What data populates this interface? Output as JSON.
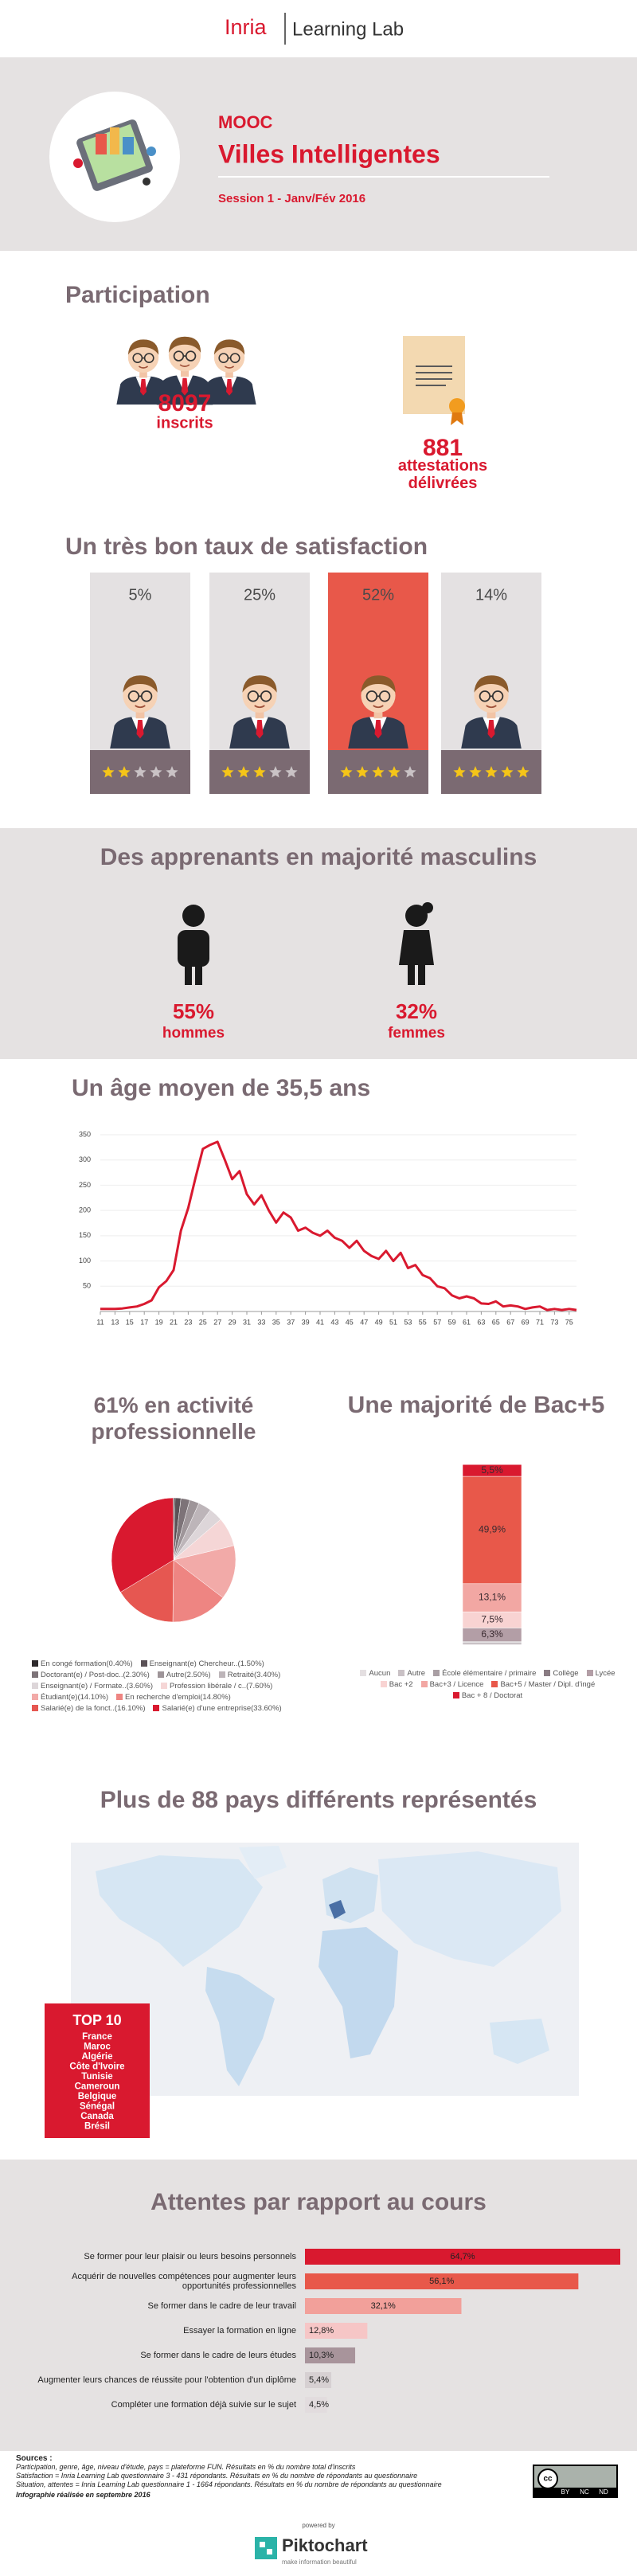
{
  "header": {
    "brand": "Inria",
    "product": "Learning Lab"
  },
  "banner": {
    "kicker": "MOOC",
    "title": "Villes Intelligentes",
    "session": "Session 1 - Janv/Fév 2016"
  },
  "participation": {
    "title": "Participation",
    "enrolled": 8097,
    "enrolled_label": "inscrits",
    "certificates": 881,
    "certificates_label": "attestations délivrées"
  },
  "satisfaction": {
    "title": "Un très bon taux de satisfaction",
    "values": [
      5,
      25,
      52,
      14
    ],
    "value_labels": [
      "5%",
      "25%",
      "52%",
      "14%"
    ],
    "stars": [
      2,
      3,
      4,
      5
    ]
  },
  "gender": {
    "title": "Des apprenants en majorité masculins",
    "values": [
      55,
      32
    ],
    "value_labels": [
      "55%",
      "32%"
    ],
    "labels": [
      "hommes",
      "femmes"
    ]
  },
  "chart_data": [
    {
      "type": "line",
      "title": "Un âge moyen de 35,5 ans",
      "color": "#d9192f",
      "grid": true,
      "x": [
        11,
        12,
        13,
        14,
        15,
        16,
        17,
        18,
        19,
        20,
        21,
        22,
        23,
        24,
        25,
        26,
        27,
        28,
        29,
        30,
        31,
        32,
        33,
        34,
        35,
        36,
        37,
        38,
        39,
        40,
        41,
        42,
        43,
        44,
        45,
        46,
        47,
        48,
        49,
        50,
        51,
        52,
        53,
        54,
        55,
        56,
        57,
        58,
        59,
        60,
        61,
        62,
        63,
        64,
        65,
        66,
        67,
        68,
        69,
        70,
        71,
        72,
        73,
        74,
        75,
        76
      ],
      "values": [
        5,
        5,
        5,
        6,
        8,
        10,
        15,
        22,
        48,
        60,
        82,
        160,
        205,
        265,
        322,
        330,
        336,
        300,
        262,
        278,
        232,
        212,
        230,
        200,
        176,
        196,
        186,
        160,
        166,
        156,
        150,
        160,
        146,
        140,
        126,
        140,
        120,
        110,
        104,
        120,
        100,
        116,
        86,
        92,
        72,
        66,
        50,
        46,
        32,
        26,
        30,
        26,
        16,
        15,
        20,
        10,
        12,
        10,
        5,
        8,
        10,
        3,
        5,
        3,
        5,
        3
      ],
      "xlim": [
        11,
        76
      ],
      "ylim": [
        0,
        350
      ],
      "xticks": [
        11,
        13,
        15,
        17,
        19,
        21,
        23,
        25,
        27,
        29,
        31,
        33,
        35,
        37,
        39,
        41,
        43,
        45,
        47,
        49,
        51,
        53,
        55,
        57,
        59,
        61,
        63,
        65,
        67,
        69,
        71,
        73,
        75
      ],
      "yticks": [
        50,
        100,
        150,
        200,
        250,
        300,
        350
      ]
    },
    {
      "type": "pie",
      "title": "61% en activité professionnelle",
      "categories": [
        "En congé formation(0.40%)",
        "Enseignant(e) Chercheur..(1.50%)",
        "Doctorant(e) / Post-doc..(2.30%)",
        "Autre(2.50%)",
        "Retraité(3.40%)",
        "Enseignant(e) / Formate..(3.60%)",
        "Profession libérale / c..(7.60%)",
        "Étudiant(e)(14.10%)",
        "En recherche d'emploi(14.80%)",
        "Salarié(e) de la fonct..(16.10%)",
        "Salarié(e) d'une entreprise(33.60%)"
      ],
      "values": [
        0.4,
        1.5,
        2.3,
        2.5,
        3.4,
        3.6,
        7.6,
        14.1,
        14.8,
        16.1,
        33.6
      ],
      "colors": [
        "#2e2a2c",
        "#5a5156",
        "#7d7378",
        "#9e9599",
        "#bdb5b9",
        "#ddd6d9",
        "#f5d6d6",
        "#f2aaa8",
        "#ee8582",
        "#e65751",
        "#d9192f"
      ]
    },
    {
      "type": "stacked_bar",
      "title": "Une majorité de Bac+5",
      "categories": [
        "Aucun",
        "Autre",
        "École élémentaire / primaire",
        "Collège",
        "Lycée",
        "Bac +2",
        "Bac+3 / Licence",
        "Bac+5 / Master / Dipl. d'ingé",
        "Bac + 8 / Doctorat"
      ],
      "values": [
        0.2,
        1.0,
        0.1,
        0.4,
        6.3,
        7.5,
        13.1,
        49.9,
        5.5
      ],
      "value_labels": [
        null,
        null,
        null,
        null,
        "6,3%",
        "7,5%",
        "13,1%",
        "49,9%",
        "5,5%"
      ],
      "colors": [
        "#e4dfe1",
        "#c9c1c5",
        "#a99fa4",
        "#8a7c83",
        "#b39ea6",
        "#f8d3d2",
        "#f2a7a3",
        "#e8584a",
        "#d9192f"
      ]
    },
    {
      "type": "hbar",
      "title": "Attentes par rapport au cours",
      "categories": [
        "Se former pour leur plaisir ou leurs besoins personnels",
        "Acquérir de nouvelles compétences pour augmenter leurs opportunités professionnelles",
        "Se former dans le cadre de leur travail",
        "Essayer la formation en ligne",
        "Se former dans le cadre de leurs études",
        "Augmenter leurs chances de réussite pour l'obtention d'un diplôme",
        "Compléter une formation déjà suivie sur le sujet"
      ],
      "values": [
        64.7,
        56.1,
        32.1,
        12.8,
        10.3,
        5.4,
        4.5
      ],
      "value_labels": [
        "64,7%",
        "56,1%",
        "32,1%",
        "12,8%",
        "10,3%",
        "5,4%",
        "4,5%"
      ],
      "colors": [
        "#d9192f",
        "#e8584a",
        "#f2a09a",
        "#f6c6c6",
        "#a8949b",
        "#d6d0d2",
        "#e2dcde"
      ]
    }
  ],
  "countries": {
    "title": "Plus de 88 pays différents représentés",
    "top_title": "TOP 10",
    "top": [
      "France",
      "Maroc",
      "Algérie",
      "Côte d'Ivoire",
      "Tunisie",
      "Cameroun",
      "Belgique",
      "Sénégal",
      "Canada",
      "Brésil"
    ]
  },
  "footer": {
    "sources_title": "Sources :",
    "sources": [
      "Participation, genre, âge, niveau d'étude, pays = plateforme FUN. Résultats en % du nombre total d'inscrits",
      "Satisfaction = Inria Learning Lab questionnaire 3 - 431 répondants. Résultats en % du nombre de répondants au questionnaire",
      "Situation, attentes = Inria Learning Lab questionnaire 1 - 1664 répondants. Résultats en % du nombre de répondants au questionnaire"
    ],
    "made": "Infographie réalisée en septembre 2016",
    "license": [
      "cc",
      "BY",
      "NC",
      "ND"
    ],
    "powered": "powered by",
    "brand": "Piktochart",
    "tagline": "make information beautiful"
  }
}
